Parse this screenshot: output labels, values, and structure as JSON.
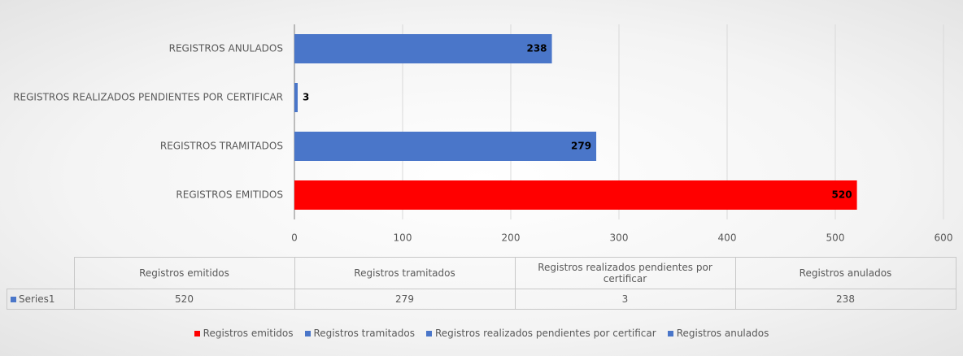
{
  "chart_data": {
    "type": "barh",
    "categories": [
      "REGISTROS EMITIDOS",
      "REGISTROS TRAMITADOS",
      "REGISTROS REALIZADOS PENDIENTES POR CERTIFICAR",
      "REGISTROS ANULADOS"
    ],
    "series": [
      {
        "name": "Series1",
        "color": "#4a76c9",
        "colors": [
          "#ff0000",
          "#4a76c9",
          "#4a76c9",
          "#4a76c9"
        ],
        "values": [
          520,
          279,
          3,
          238
        ]
      }
    ],
    "xlim": [
      0,
      600
    ],
    "xticks": [
      0,
      100,
      200,
      300,
      400,
      500,
      600
    ],
    "grid": true,
    "table_headers": [
      "Registros emitidos",
      "Registros tramitados",
      "Registros realizados pendientes por certificar",
      "Registros anulados"
    ],
    "legend_position": "bottom"
  }
}
